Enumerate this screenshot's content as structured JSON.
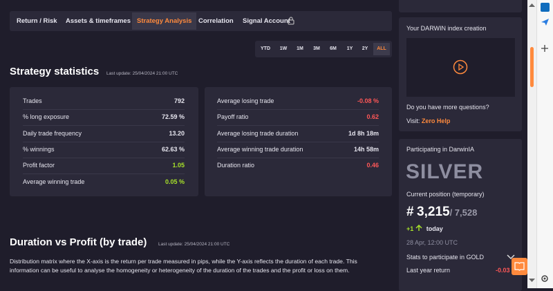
{
  "tabs": [
    "Return / Risk",
    "Assets & timeframes",
    "Strategy Analysis",
    "Correlation",
    "Signal Account"
  ],
  "periods": [
    "YTD",
    "1W",
    "1M",
    "3M",
    "6M",
    "1Y",
    "2Y",
    "ALL"
  ],
  "statistics": {
    "title": "Strategy statistics",
    "last_update": "Last update: 25/04/2024 21:00 UTC",
    "left": [
      {
        "label": "Trades",
        "value": "792"
      },
      {
        "label": "% long exposure",
        "value": "72.59 %"
      },
      {
        "label": "Daily trade frequency",
        "value": "13.20"
      },
      {
        "label": "% winnings",
        "value": "62.63 %"
      },
      {
        "label": "Profit factor",
        "value": "1.05"
      },
      {
        "label": "Average winning trade",
        "value": "0.05 %"
      }
    ],
    "right": [
      {
        "label": "Average losing trade",
        "value": "-0.08 %"
      },
      {
        "label": "Payoff ratio",
        "value": "0.62"
      },
      {
        "label": "Average losing trade duration",
        "value": "1d 8h 18m"
      },
      {
        "label": "Average winning trade duration",
        "value": "14h 58m"
      },
      {
        "label": "Duration ratio",
        "value": "0.46"
      }
    ]
  },
  "duration_profit": {
    "title": "Duration vs Profit (by trade)",
    "last_update": "Last update: 25/04/2024 21:00 UTC",
    "description": "Distribution matrix where the X-axis is the return per trade measured in pips, while the Y-axis reflects the duration of each trade. This information can be useful to analyse the homogeneity or heterogeneity of the duration of the trades and the profit or loss on them."
  },
  "sidebar": {
    "index_creation": {
      "title": "Your DARWIN index creation",
      "question": "Do you have more questions?",
      "visit_label": "Visit:",
      "help_link": "Zero Help"
    },
    "darwinia": {
      "title": "Participating in DarwinIA",
      "tier": "SILVER",
      "position_label": "Current position (temporary)",
      "position_prefix": "#",
      "position": "3,215",
      "total": "/ 7,528",
      "change": "+1",
      "change_label": "today",
      "date": "28 Apr, 12:00 UTC",
      "stats_label": "Stats to participate in GOLD",
      "return_label": "Last year return",
      "return_value": "-0.03"
    }
  }
}
